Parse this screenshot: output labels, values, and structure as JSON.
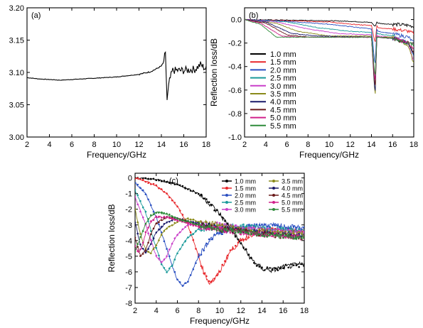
{
  "colors": {
    "1.0 mm": "#000000",
    "1.5 mm": "#e8262a",
    "2.0 mm": "#2a4fc1",
    "2.5 mm": "#1a9a9a",
    "3.0 mm": "#c93fc9",
    "3.5 mm": "#8a8a1a",
    "4.0 mm": "#1a1a6a",
    "4.5 mm": "#6a1a1a",
    "5.0 mm": "#d0208a",
    "5.5 mm": "#2e8b3a"
  },
  "chart_data": [
    {
      "type": "line",
      "panel_label": "(a)",
      "xlabel": "Frequency/GHz",
      "ylabel": "",
      "xlim": [
        2,
        18
      ],
      "ylim": [
        3.0,
        3.2
      ],
      "xticks": [
        "2",
        "4",
        "6",
        "8",
        "10",
        "12",
        "14",
        "16",
        "18"
      ],
      "yticks": [
        "3.00",
        "3.05",
        "3.10",
        "3.15",
        "3.20"
      ],
      "series": [
        {
          "x": [
            2,
            3,
            4,
            5,
            6,
            7,
            8,
            9,
            10,
            11,
            12,
            13,
            13.5,
            14,
            14.2,
            14.35,
            14.5,
            14.7,
            15,
            16,
            17,
            17.5,
            18
          ],
          "y": [
            3.092,
            3.09,
            3.089,
            3.088,
            3.089,
            3.09,
            3.091,
            3.092,
            3.093,
            3.095,
            3.097,
            3.101,
            3.105,
            3.11,
            3.115,
            3.138,
            3.056,
            3.085,
            3.103,
            3.103,
            3.105,
            3.112,
            3.105
          ]
        }
      ]
    },
    {
      "type": "line",
      "panel_label": "(b)",
      "xlabel": "Frequency/GHz",
      "ylabel": "Reflection loss/dB",
      "xlim": [
        2,
        18
      ],
      "ylim": [
        -1.0,
        0.1
      ],
      "xticks": [
        "2",
        "4",
        "6",
        "8",
        "10",
        "12",
        "14",
        "16",
        "18"
      ],
      "yticks": [
        "0.0",
        "-0.2",
        "-0.4",
        "-0.6",
        "-0.8",
        "-1.0"
      ],
      "legend": "center-left",
      "series": [
        {
          "name": "1.0 mm",
          "x": [
            2,
            6,
            10,
            12,
            13,
            14,
            14.35,
            14.5,
            14.6,
            15,
            16,
            17,
            17.5,
            18
          ],
          "y": [
            0,
            -0.005,
            -0.01,
            -0.015,
            -0.02,
            -0.025,
            -0.06,
            -0.02,
            -0.03,
            -0.035,
            -0.04,
            -0.045,
            -0.05,
            -0.06
          ]
        },
        {
          "name": "1.5 mm",
          "x": [
            2,
            6,
            10,
            12,
            14,
            14.35,
            14.5,
            14.6,
            16,
            17.5,
            18
          ],
          "y": [
            0,
            -0.01,
            -0.02,
            -0.04,
            -0.05,
            -0.2,
            -0.05,
            -0.07,
            -0.08,
            -0.1,
            -0.12
          ]
        },
        {
          "name": "2.0 mm",
          "x": [
            2,
            6,
            10,
            12,
            14,
            14.35,
            14.5,
            14.6,
            16,
            17.5,
            18
          ],
          "y": [
            0,
            -0.015,
            -0.04,
            -0.06,
            -0.08,
            -0.4,
            -0.08,
            -0.1,
            -0.12,
            -0.15,
            -0.2
          ]
        },
        {
          "name": "2.5 mm",
          "x": [
            2,
            6,
            9,
            12,
            14,
            14.35,
            14.5,
            14.6,
            16,
            17.5,
            18
          ],
          "y": [
            0,
            -0.02,
            -0.07,
            -0.1,
            -0.11,
            -0.55,
            -0.11,
            -0.12,
            -0.14,
            -0.2,
            -0.3
          ]
        },
        {
          "name": "3.0 mm",
          "x": [
            2,
            5,
            8,
            11,
            14,
            14.35,
            14.5,
            14.6,
            16,
            17.5,
            18
          ],
          "y": [
            0,
            -0.02,
            -0.08,
            -0.12,
            -0.13,
            -0.6,
            -0.13,
            -0.14,
            -0.15,
            -0.2,
            -0.35
          ]
        },
        {
          "name": "3.5 mm",
          "x": [
            2,
            5,
            7,
            10,
            14,
            14.35,
            14.5,
            14.6,
            16,
            17.5,
            18
          ],
          "y": [
            0,
            -0.03,
            -0.1,
            -0.14,
            -0.14,
            -0.68,
            -0.14,
            -0.15,
            -0.15,
            -0.22,
            -0.38
          ]
        },
        {
          "name": "4.0 mm",
          "x": [
            2,
            4,
            6.5,
            9,
            14,
            14.35,
            14.5,
            14.6,
            16,
            17.5,
            18
          ],
          "y": [
            0,
            -0.02,
            -0.12,
            -0.14,
            -0.15,
            -0.65,
            -0.15,
            -0.15,
            -0.16,
            -0.2,
            -0.3
          ]
        },
        {
          "name": "4.5 mm",
          "x": [
            2,
            4,
            6,
            8,
            14,
            14.35,
            14.5,
            14.6,
            16,
            17.5,
            18
          ],
          "y": [
            0,
            -0.03,
            -0.13,
            -0.15,
            -0.15,
            -0.6,
            -0.15,
            -0.15,
            -0.16,
            -0.2,
            -0.28
          ]
        },
        {
          "name": "5.0 mm",
          "x": [
            2,
            3.5,
            5.5,
            7.5,
            14,
            14.35,
            14.5,
            14.6,
            16,
            17.5,
            18
          ],
          "y": [
            0,
            -0.03,
            -0.14,
            -0.15,
            -0.15,
            -0.55,
            -0.15,
            -0.15,
            -0.16,
            -0.2,
            -0.25
          ]
        },
        {
          "name": "5.5 mm",
          "x": [
            2,
            3.5,
            5,
            7,
            14,
            14.35,
            14.5,
            14.6,
            16,
            17.5,
            18
          ],
          "y": [
            0,
            -0.04,
            -0.15,
            -0.15,
            -0.15,
            -0.5,
            -0.15,
            -0.15,
            -0.16,
            -0.2,
            -0.22
          ]
        }
      ]
    },
    {
      "type": "line",
      "panel_label": "(c)",
      "xlabel": "Frequency/GHz",
      "ylabel": "Reflection loss/dB",
      "xlim": [
        2,
        18
      ],
      "ylim": [
        -8,
        0.3
      ],
      "xticks": [
        "2",
        "4",
        "6",
        "8",
        "10",
        "12",
        "14",
        "16",
        "18"
      ],
      "yticks": [
        "0",
        "-1",
        "-2",
        "-3",
        "-4",
        "-5",
        "-6",
        "-7",
        "-8"
      ],
      "legend": "top-right",
      "series": [
        {
          "name": "1.0 mm",
          "x": [
            2,
            4,
            6,
            8,
            9,
            10,
            11,
            12,
            13,
            14,
            15,
            16,
            17,
            18
          ],
          "y": [
            0,
            -0.1,
            -0.4,
            -1.0,
            -1.6,
            -2.3,
            -3.2,
            -4.2,
            -5.2,
            -5.8,
            -5.9,
            -5.7,
            -5.6,
            -5.5
          ]
        },
        {
          "name": "1.5 mm",
          "x": [
            2,
            3,
            4,
            5,
            6,
            7,
            8,
            8.5,
            9,
            9.5,
            10,
            11,
            12,
            13,
            14,
            16,
            18
          ],
          "y": [
            0,
            -0.2,
            -0.5,
            -1.0,
            -1.8,
            -3.0,
            -5.0,
            -6.0,
            -6.7,
            -6.5,
            -6.0,
            -4.7,
            -4.0,
            -3.6,
            -3.4,
            -3.3,
            -3.4
          ]
        },
        {
          "name": "2.0 mm",
          "x": [
            2,
            3,
            4,
            5,
            5.5,
            6,
            6.5,
            7,
            7.5,
            8,
            9,
            10,
            12,
            14,
            16,
            18
          ],
          "y": [
            -0.3,
            -1.0,
            -2.5,
            -4.5,
            -5.6,
            -6.5,
            -6.9,
            -6.6,
            -5.8,
            -5.0,
            -4.0,
            -3.5,
            -3.2,
            -3.0,
            -3.1,
            -3.2
          ]
        },
        {
          "name": "2.5 mm",
          "x": [
            2,
            3,
            4,
            4.5,
            5,
            5.5,
            6,
            7,
            8,
            10,
            12,
            14,
            16,
            18
          ],
          "y": [
            -0.8,
            -2.2,
            -4.5,
            -5.5,
            -6.0,
            -5.6,
            -4.8,
            -3.8,
            -3.3,
            -3.1,
            -3.1,
            -3.2,
            -3.3,
            -3.4
          ]
        },
        {
          "name": "3.0 mm",
          "x": [
            2,
            3,
            4,
            4.5,
            5,
            5.5,
            6,
            7,
            8,
            10,
            12,
            14,
            16,
            18
          ],
          "y": [
            -1.2,
            -3.0,
            -5.0,
            -5.4,
            -5.0,
            -4.2,
            -3.6,
            -3.0,
            -2.9,
            -3.0,
            -3.2,
            -3.3,
            -3.4,
            -3.5
          ]
        },
        {
          "name": "3.5 mm",
          "x": [
            2,
            2.5,
            3,
            3.5,
            4,
            4.5,
            5,
            6,
            7,
            8,
            10,
            12,
            14,
            16,
            18
          ],
          "y": [
            -2.0,
            -3.6,
            -4.6,
            -4.8,
            -4.3,
            -3.6,
            -3.2,
            -2.8,
            -2.6,
            -2.8,
            -3.0,
            -3.3,
            -3.4,
            -3.5,
            -3.6
          ]
        },
        {
          "name": "4.0 mm",
          "x": [
            2,
            2.5,
            3,
            3.5,
            4,
            5,
            6,
            8,
            10,
            12,
            14,
            16,
            18
          ],
          "y": [
            -2.8,
            -4.3,
            -4.8,
            -4.2,
            -3.5,
            -2.8,
            -2.6,
            -2.9,
            -3.2,
            -3.4,
            -3.5,
            -3.6,
            -3.7
          ]
        },
        {
          "name": "4.5 mm",
          "x": [
            2,
            2.5,
            3,
            3.5,
            4,
            5,
            6,
            8,
            10,
            12,
            14,
            16,
            18
          ],
          "y": [
            -3.8,
            -5.0,
            -4.6,
            -3.6,
            -2.9,
            -2.5,
            -2.6,
            -3.0,
            -3.3,
            -3.4,
            -3.6,
            -3.7,
            -3.8
          ]
        },
        {
          "name": "5.0 mm",
          "x": [
            2,
            2.3,
            2.7,
            3,
            3.5,
            4,
            5,
            6,
            8,
            10,
            12,
            14,
            16,
            18
          ],
          "y": [
            -4.3,
            -4.8,
            -4.3,
            -3.5,
            -2.8,
            -2.5,
            -2.5,
            -2.7,
            -3.1,
            -3.3,
            -3.5,
            -3.6,
            -3.7,
            -3.8
          ]
        },
        {
          "name": "5.5 mm",
          "x": [
            2,
            2.5,
            3,
            3.5,
            4,
            5,
            6,
            8,
            10,
            12,
            14,
            16,
            18
          ],
          "y": [
            -4.7,
            -3.8,
            -2.9,
            -2.4,
            -2.2,
            -2.3,
            -2.6,
            -3.0,
            -3.3,
            -3.4,
            -3.6,
            -3.7,
            -3.8
          ]
        }
      ]
    }
  ]
}
